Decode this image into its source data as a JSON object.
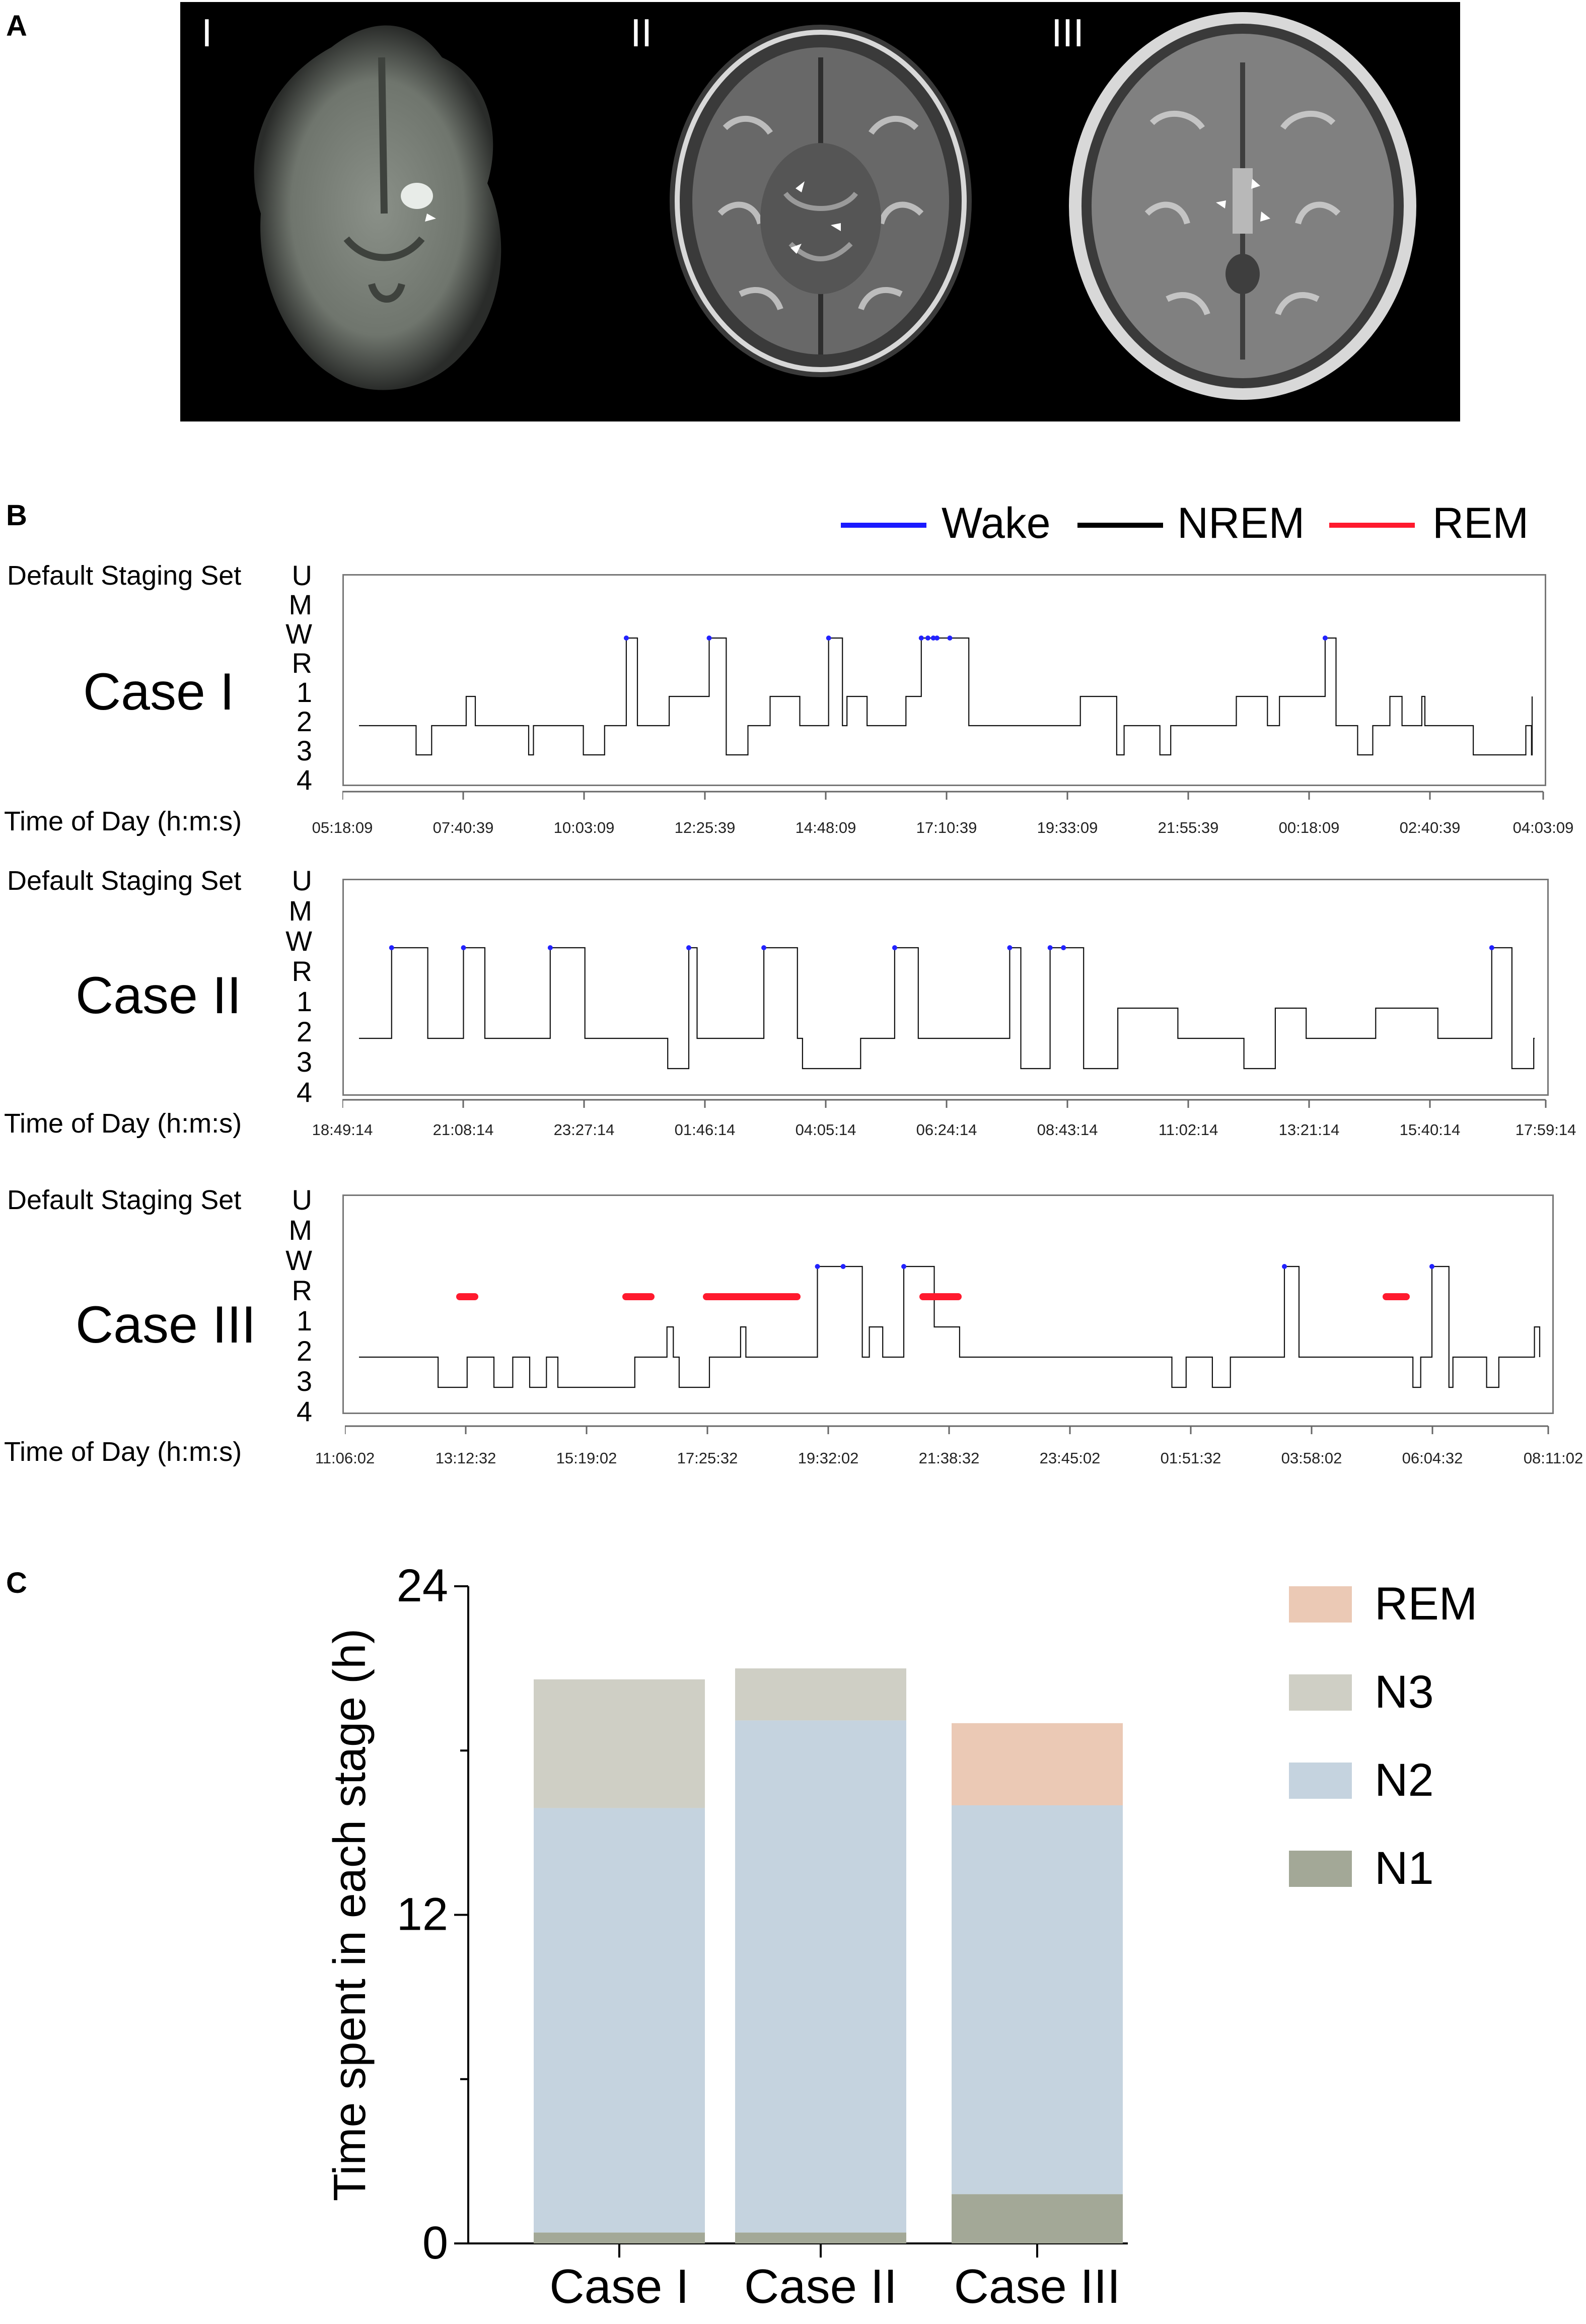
{
  "panel_a": {
    "label": "A",
    "images": [
      {
        "label": "I"
      },
      {
        "label": "II"
      },
      {
        "label": "III"
      }
    ]
  },
  "panel_b": {
    "label": "B",
    "legend": [
      {
        "name": "Wake",
        "color": "#1a1aff"
      },
      {
        "name": "NREM",
        "color": "#000000"
      },
      {
        "name": "REM",
        "color": "#ff1a2e"
      }
    ],
    "y_title": "Default Staging Set",
    "stage_labels": [
      "U",
      "M",
      "W",
      "R",
      "1",
      "2",
      "3",
      "4"
    ],
    "x_title": "Time of Day (h:m:s)",
    "cases": [
      {
        "name": "Case I",
        "ticks": [
          "05:18:09",
          "07:40:39",
          "10:03:09",
          "12:25:39",
          "14:48:09",
          "17:10:39",
          "19:33:09",
          "21:55:39",
          "00:18:09",
          "02:40:39",
          "04:03:09"
        ]
      },
      {
        "name": "Case II",
        "ticks": [
          "18:49:14",
          "21:08:14",
          "23:27:14",
          "01:46:14",
          "04:05:14",
          "06:24:14",
          "08:43:14",
          "11:02:14",
          "13:21:14",
          "15:40:14",
          "17:59:14"
        ]
      },
      {
        "name": "Case III",
        "ticks": [
          "11:06:02",
          "13:12:32",
          "15:19:02",
          "17:25:32",
          "19:32:02",
          "21:38:32",
          "23:45:02",
          "01:51:32",
          "03:58:02",
          "06:04:32",
          "08:11:02"
        ]
      }
    ]
  },
  "panel_c": {
    "label": "C"
  },
  "chart_data": {
    "type": "bar",
    "stacked": true,
    "title": "",
    "xlabel": "",
    "ylabel": "Time spent in each stage (h)",
    "ylim": [
      0,
      24
    ],
    "y_ticks": [
      "0",
      "12",
      "24"
    ],
    "categories": [
      "Case I",
      "Case II",
      "Case III"
    ],
    "series": [
      {
        "name": "N1",
        "color": "#a3a897",
        "values": [
          0.4,
          0.4,
          1.8
        ]
      },
      {
        "name": "N2",
        "color": "#c5d3df",
        "values": [
          15.5,
          18.7,
          14.2
        ]
      },
      {
        "name": "N3",
        "color": "#cfcfc5",
        "values": [
          4.7,
          1.9,
          0
        ]
      },
      {
        "name": "REM",
        "color": "#ebc9b5",
        "values": [
          0,
          0,
          3.0
        ]
      }
    ],
    "legend_order": [
      "REM",
      "N3",
      "N2",
      "N1"
    ]
  }
}
